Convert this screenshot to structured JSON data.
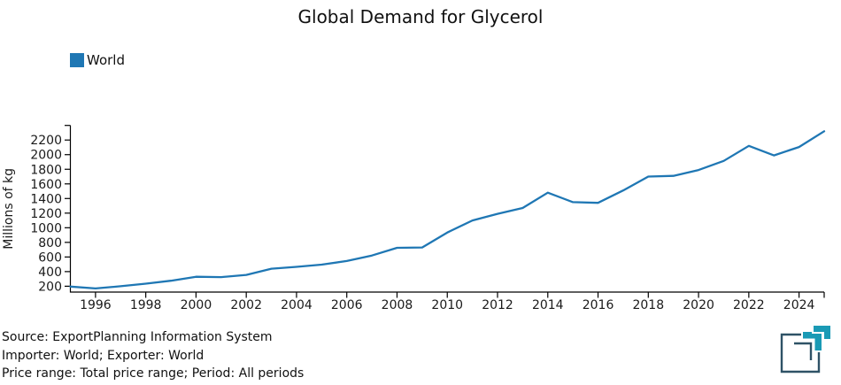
{
  "title": "Global Demand for Glycerol",
  "legend": {
    "label": "World",
    "color": "#1f77b4"
  },
  "footer": {
    "line1": "Source: ExportPlanning Information System",
    "line2": "Importer: World; Exporter: World",
    "line3": "Price range: Total price range; Period: All periods"
  },
  "logo": {
    "name": "exportplanning-logo",
    "dark": "#2e5266",
    "teal": "#1a9ab5"
  },
  "chart_data": {
    "type": "line",
    "title": "Global Demand for Glycerol",
    "xlabel": "",
    "ylabel": "Millions of kg",
    "legend_position": "top-left",
    "grid": false,
    "xlim": [
      1995,
      2025
    ],
    "ylim": [
      120,
      2400
    ],
    "xticks": [
      1996,
      1998,
      2000,
      2002,
      2004,
      2006,
      2008,
      2010,
      2012,
      2014,
      2016,
      2018,
      2020,
      2022,
      2024
    ],
    "yticks": [
      200,
      400,
      600,
      800,
      1000,
      1200,
      1400,
      1600,
      1800,
      2000,
      2200
    ],
    "series": [
      {
        "name": "World",
        "color": "#1f77b4",
        "x": [
          1995,
          1996,
          1997,
          1998,
          1999,
          2000,
          2001,
          2002,
          2003,
          2004,
          2005,
          2006,
          2007,
          2008,
          2009,
          2010,
          2011,
          2012,
          2013,
          2014,
          2015,
          2016,
          2017,
          2018,
          2019,
          2020,
          2021,
          2022,
          2023,
          2024,
          2025
        ],
        "values": [
          195,
          170,
          200,
          235,
          275,
          330,
          325,
          355,
          440,
          465,
          495,
          545,
          620,
          725,
          730,
          935,
          1100,
          1190,
          1270,
          1480,
          1350,
          1340,
          1510,
          1700,
          1710,
          1790,
          1915,
          2120,
          1990,
          2105,
          2320
        ]
      }
    ]
  }
}
